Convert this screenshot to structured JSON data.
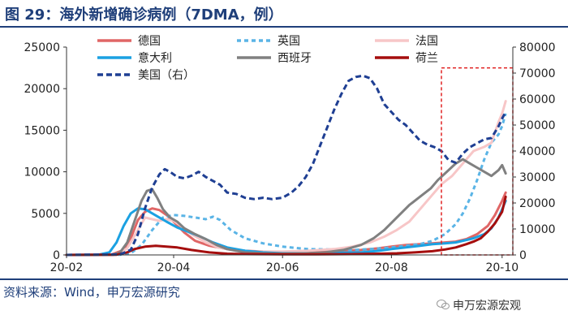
{
  "header": {
    "title": "图 29：海外新增确诊病例（7DMA，例）"
  },
  "footer": {
    "source": "资料来源：Wind，申万宏源研究",
    "watermark": "申万宏源宏观"
  },
  "chart_data": {
    "type": "line",
    "title": "海外新增确诊病例（7DMA，例）",
    "x_ticks": [
      {
        "label": "20-02",
        "day": 0
      },
      {
        "label": "20-04",
        "day": 60
      },
      {
        "label": "20-06",
        "day": 121
      },
      {
        "label": "20-08",
        "day": 182
      },
      {
        "label": "20-10",
        "day": 244
      }
    ],
    "x_range": [
      0,
      250
    ],
    "left_axis": {
      "min": 0,
      "max": 25000,
      "ticks": [
        0,
        5000,
        10000,
        15000,
        20000,
        25000
      ]
    },
    "right_axis": {
      "min": 0,
      "max": 80000,
      "ticks": [
        0,
        10000,
        20000,
        30000,
        40000,
        50000,
        60000,
        70000,
        80000
      ]
    },
    "highlight_box": {
      "x_from": 210,
      "x_to": 250,
      "y_right_from": 0,
      "y_right_to": 72000
    },
    "series": [
      {
        "name": "德国",
        "color": "#e06666",
        "dash": "solid",
        "axis": "left",
        "points": [
          [
            0,
            0
          ],
          [
            25,
            30
          ],
          [
            32,
            600
          ],
          [
            36,
            2000
          ],
          [
            40,
            4200
          ],
          [
            44,
            5200
          ],
          [
            48,
            5600
          ],
          [
            52,
            5400
          ],
          [
            56,
            4800
          ],
          [
            60,
            4000
          ],
          [
            66,
            2700
          ],
          [
            72,
            1700
          ],
          [
            80,
            1100
          ],
          [
            90,
            700
          ],
          [
            100,
            500
          ],
          [
            110,
            400
          ],
          [
            121,
            350
          ],
          [
            135,
            380
          ],
          [
            150,
            450
          ],
          [
            165,
            600
          ],
          [
            175,
            800
          ],
          [
            182,
            1000
          ],
          [
            190,
            1200
          ],
          [
            198,
            1300
          ],
          [
            205,
            1400
          ],
          [
            212,
            1500
          ],
          [
            218,
            1600
          ],
          [
            224,
            1900
          ],
          [
            230,
            2500
          ],
          [
            236,
            3500
          ],
          [
            240,
            4800
          ],
          [
            244,
            6500
          ],
          [
            246,
            7500
          ]
        ]
      },
      {
        "name": "英国",
        "color": "#5ab4e6",
        "dash": "5,4",
        "axis": "left",
        "points": [
          [
            0,
            0
          ],
          [
            30,
            20
          ],
          [
            36,
            200
          ],
          [
            42,
            1200
          ],
          [
            48,
            3000
          ],
          [
            54,
            4500
          ],
          [
            60,
            4800
          ],
          [
            66,
            4700
          ],
          [
            72,
            4500
          ],
          [
            78,
            4300
          ],
          [
            82,
            4600
          ],
          [
            86,
            4200
          ],
          [
            92,
            3000
          ],
          [
            100,
            2000
          ],
          [
            110,
            1400
          ],
          [
            121,
            1000
          ],
          [
            135,
            700
          ],
          [
            150,
            650
          ],
          [
            160,
            600
          ],
          [
            170,
            700
          ],
          [
            182,
            900
          ],
          [
            190,
            1100
          ],
          [
            198,
            1300
          ],
          [
            205,
            1700
          ],
          [
            212,
            2500
          ],
          [
            218,
            3700
          ],
          [
            222,
            5000
          ],
          [
            226,
            6800
          ],
          [
            230,
            9000
          ],
          [
            234,
            11500
          ],
          [
            238,
            13500
          ],
          [
            242,
            14500
          ],
          [
            244,
            15500
          ],
          [
            246,
            17000
          ]
        ]
      },
      {
        "name": "法国",
        "color": "#f7c6c7",
        "dash": "solid",
        "axis": "left",
        "points": [
          [
            0,
            0
          ],
          [
            28,
            30
          ],
          [
            34,
            800
          ],
          [
            40,
            3000
          ],
          [
            44,
            4500
          ],
          [
            48,
            4300
          ],
          [
            52,
            4100
          ],
          [
            56,
            4300
          ],
          [
            60,
            4100
          ],
          [
            64,
            3500
          ],
          [
            70,
            2500
          ],
          [
            78,
            1500
          ],
          [
            85,
            900
          ],
          [
            95,
            500
          ],
          [
            105,
            400
          ],
          [
            121,
            400
          ],
          [
            135,
            500
          ],
          [
            150,
            700
          ],
          [
            160,
            1000
          ],
          [
            170,
            1500
          ],
          [
            178,
            2200
          ],
          [
            185,
            3000
          ],
          [
            192,
            4000
          ],
          [
            198,
            5500
          ],
          [
            204,
            7000
          ],
          [
            210,
            8500
          ],
          [
            216,
            9500
          ],
          [
            222,
            11000
          ],
          [
            228,
            12500
          ],
          [
            234,
            13000
          ],
          [
            238,
            13500
          ],
          [
            242,
            16000
          ],
          [
            244,
            17000
          ],
          [
            246,
            18500
          ]
        ]
      },
      {
        "name": "意大利",
        "color": "#1ba1e2",
        "dash": "solid",
        "axis": "left",
        "points": [
          [
            0,
            0
          ],
          [
            18,
            30
          ],
          [
            24,
            300
          ],
          [
            28,
            1500
          ],
          [
            32,
            3500
          ],
          [
            36,
            5000
          ],
          [
            40,
            5600
          ],
          [
            44,
            5500
          ],
          [
            48,
            5000
          ],
          [
            52,
            4500
          ],
          [
            56,
            4000
          ],
          [
            62,
            3300
          ],
          [
            68,
            2800
          ],
          [
            75,
            2200
          ],
          [
            82,
            1500
          ],
          [
            90,
            900
          ],
          [
            100,
            500
          ],
          [
            110,
            300
          ],
          [
            121,
            200
          ],
          [
            135,
            200
          ],
          [
            150,
            250
          ],
          [
            165,
            300
          ],
          [
            175,
            500
          ],
          [
            182,
            700
          ],
          [
            190,
            900
          ],
          [
            198,
            1100
          ],
          [
            205,
            1300
          ],
          [
            212,
            1400
          ],
          [
            218,
            1500
          ],
          [
            222,
            1700
          ],
          [
            228,
            2000
          ],
          [
            234,
            2500
          ],
          [
            238,
            3200
          ],
          [
            242,
            4500
          ],
          [
            244,
            5500
          ],
          [
            246,
            6500
          ]
        ]
      },
      {
        "name": "西班牙",
        "color": "#808080",
        "dash": "solid",
        "axis": "left",
        "points": [
          [
            0,
            0
          ],
          [
            26,
            20
          ],
          [
            30,
            300
          ],
          [
            34,
            1500
          ],
          [
            38,
            4000
          ],
          [
            42,
            6500
          ],
          [
            45,
            7700
          ],
          [
            48,
            7900
          ],
          [
            51,
            6800
          ],
          [
            54,
            5500
          ],
          [
            58,
            4500
          ],
          [
            62,
            4000
          ],
          [
            66,
            3200
          ],
          [
            72,
            2500
          ],
          [
            78,
            1900
          ],
          [
            84,
            1200
          ],
          [
            90,
            700
          ],
          [
            100,
            300
          ],
          [
            110,
            200
          ],
          [
            121,
            150
          ],
          [
            135,
            200
          ],
          [
            145,
            300
          ],
          [
            155,
            600
          ],
          [
            165,
            1200
          ],
          [
            172,
            2000
          ],
          [
            178,
            3000
          ],
          [
            185,
            4500
          ],
          [
            192,
            6000
          ],
          [
            198,
            7000
          ],
          [
            204,
            8000
          ],
          [
            208,
            9000
          ],
          [
            213,
            10000
          ],
          [
            218,
            11000
          ],
          [
            222,
            11500
          ],
          [
            226,
            11000
          ],
          [
            230,
            10500
          ],
          [
            234,
            10000
          ],
          [
            238,
            9500
          ],
          [
            242,
            10200
          ],
          [
            244,
            10800
          ],
          [
            246,
            9800
          ]
        ]
      },
      {
        "name": "荷兰",
        "color": "#a50e0e",
        "dash": "solid",
        "axis": "left",
        "points": [
          [
            0,
            0
          ],
          [
            28,
            30
          ],
          [
            34,
            300
          ],
          [
            38,
            700
          ],
          [
            44,
            1000
          ],
          [
            50,
            1100
          ],
          [
            56,
            1000
          ],
          [
            62,
            900
          ],
          [
            70,
            600
          ],
          [
            80,
            300
          ],
          [
            90,
            150
          ],
          [
            100,
            100
          ],
          [
            121,
            80
          ],
          [
            140,
            80
          ],
          [
            160,
            100
          ],
          [
            175,
            150
          ],
          [
            185,
            200
          ],
          [
            195,
            300
          ],
          [
            205,
            450
          ],
          [
            212,
            650
          ],
          [
            218,
            900
          ],
          [
            224,
            1300
          ],
          [
            228,
            1600
          ],
          [
            232,
            2000
          ],
          [
            236,
            2800
          ],
          [
            240,
            3800
          ],
          [
            244,
            5200
          ],
          [
            246,
            7000
          ]
        ]
      },
      {
        "name": "美国（右）",
        "color": "#1f3f93",
        "dash": "7,4",
        "axis": "right",
        "points": [
          [
            0,
            0
          ],
          [
            30,
            200
          ],
          [
            36,
            2000
          ],
          [
            40,
            8000
          ],
          [
            44,
            18000
          ],
          [
            48,
            26000
          ],
          [
            52,
            31000
          ],
          [
            55,
            33000
          ],
          [
            58,
            32000
          ],
          [
            62,
            30000
          ],
          [
            66,
            29500
          ],
          [
            70,
            30500
          ],
          [
            74,
            32000
          ],
          [
            78,
            30000
          ],
          [
            82,
            28500
          ],
          [
            86,
            27000
          ],
          [
            90,
            24000
          ],
          [
            95,
            23500
          ],
          [
            100,
            22000
          ],
          [
            105,
            21500
          ],
          [
            110,
            22000
          ],
          [
            115,
            21500
          ],
          [
            121,
            22000
          ],
          [
            126,
            24000
          ],
          [
            130,
            26500
          ],
          [
            134,
            30000
          ],
          [
            138,
            35000
          ],
          [
            142,
            42000
          ],
          [
            146,
            49000
          ],
          [
            150,
            56000
          ],
          [
            154,
            62000
          ],
          [
            158,
            67000
          ],
          [
            162,
            68500
          ],
          [
            166,
            69000
          ],
          [
            170,
            68000
          ],
          [
            174,
            64000
          ],
          [
            178,
            58000
          ],
          [
            182,
            55000
          ],
          [
            186,
            52000
          ],
          [
            190,
            50000
          ],
          [
            194,
            47000
          ],
          [
            198,
            44000
          ],
          [
            202,
            42500
          ],
          [
            206,
            41500
          ],
          [
            210,
            40000
          ],
          [
            214,
            36500
          ],
          [
            218,
            35500
          ],
          [
            222,
            39000
          ],
          [
            226,
            41500
          ],
          [
            230,
            43000
          ],
          [
            234,
            44500
          ],
          [
            238,
            45000
          ],
          [
            242,
            49500
          ],
          [
            244,
            52500
          ],
          [
            246,
            55000
          ]
        ]
      }
    ],
    "legend": {
      "position": "top-left",
      "columns": 3
    }
  }
}
